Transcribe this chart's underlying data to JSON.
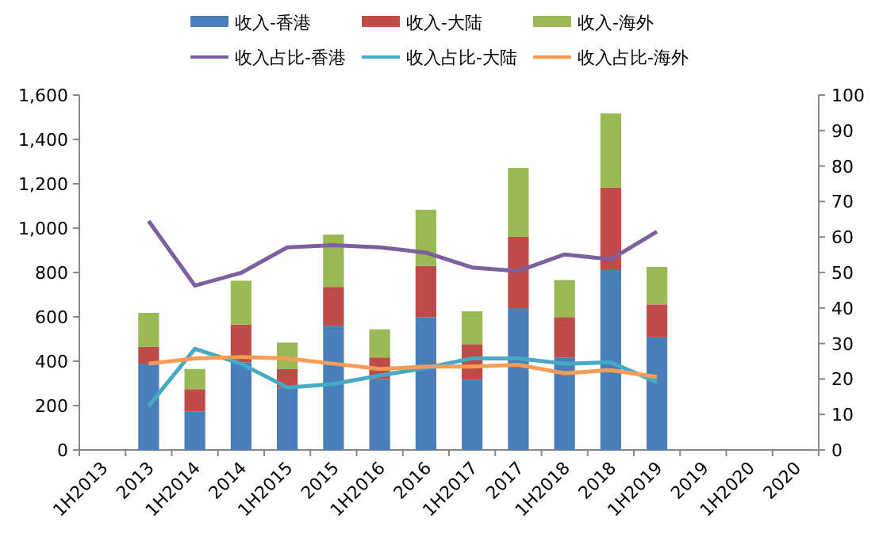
{
  "chart_data": {
    "type": "bar",
    "stacked": true,
    "legend": "top",
    "grid": false,
    "marker": "none",
    "line_style": "solid",
    "categories": [
      "1H2013",
      "2013",
      "1H2014",
      "2014",
      "1H2015",
      "2015",
      "1H2016",
      "2016",
      "1H2017",
      "2017",
      "1H2018",
      "2018",
      "1H2019",
      "2019",
      "1H2020",
      "2020"
    ],
    "ylim": [
      0,
      1600
    ],
    "yticks": [
      0,
      200,
      400,
      {
        "value": 600,
        "label": "600"
      },
      800,
      {
        "value": 1000,
        "label": "1,000"
      },
      {
        "value": 1200,
        "label": "1,200"
      },
      {
        "value": 1400,
        "label": "1,400"
      },
      {
        "value": 1600,
        "label": "1,600"
      }
    ],
    "y2lim": [
      0,
      100
    ],
    "y2ticks": [
      0,
      10,
      20,
      30,
      40,
      50,
      60,
      70,
      80,
      90,
      100
    ],
    "series": [
      {
        "name": "收入-香港",
        "color": "#4a7ebb",
        "values": [
          null,
          389,
          174,
          395,
          281,
          560,
          320,
          599,
          317,
          639,
          417,
          811,
          508,
          null,
          null,
          null
        ]
      },
      {
        "name": "收入-大陆",
        "color": "#be4b48",
        "values": [
          null,
          76,
          100,
          170,
          84,
          175,
          97,
          231,
          160,
          322,
          182,
          372,
          148,
          null,
          null,
          null
        ]
      },
      {
        "name": "收入-海外",
        "color": "#98b954",
        "values": [
          null,
          153,
          91,
          198,
          119,
          236,
          127,
          253,
          148,
          310,
          167,
          334,
          169,
          null,
          null,
          null
        ]
      },
      {
        "name": "收入占比-香港",
        "type": "line",
        "axis": "y2",
        "color": "#7d5fa0",
        "values": [
          null,
          64.5,
          46.3,
          49.9,
          57.1,
          57.7,
          57.1,
          55.6,
          51.4,
          50.4,
          55.1,
          53.7,
          61.5,
          null,
          null,
          null
        ]
      },
      {
        "name": "收入占比-大陆",
        "type": "line",
        "axis": "y2",
        "color": "#46aac5",
        "values": [
          null,
          12.4,
          28.5,
          24.3,
          17.6,
          18.6,
          21.0,
          23.1,
          25.8,
          25.8,
          24.3,
          24.7,
          19.1,
          null,
          null,
          null
        ]
      },
      {
        "name": "收入占比-海外",
        "type": "line",
        "axis": "y2",
        "color": "#f59d56",
        "values": [
          null,
          24.3,
          25.8,
          26.2,
          25.8,
          24.3,
          22.8,
          23.5,
          23.5,
          24.0,
          21.6,
          22.5,
          20.6,
          null,
          null,
          null
        ]
      }
    ]
  }
}
